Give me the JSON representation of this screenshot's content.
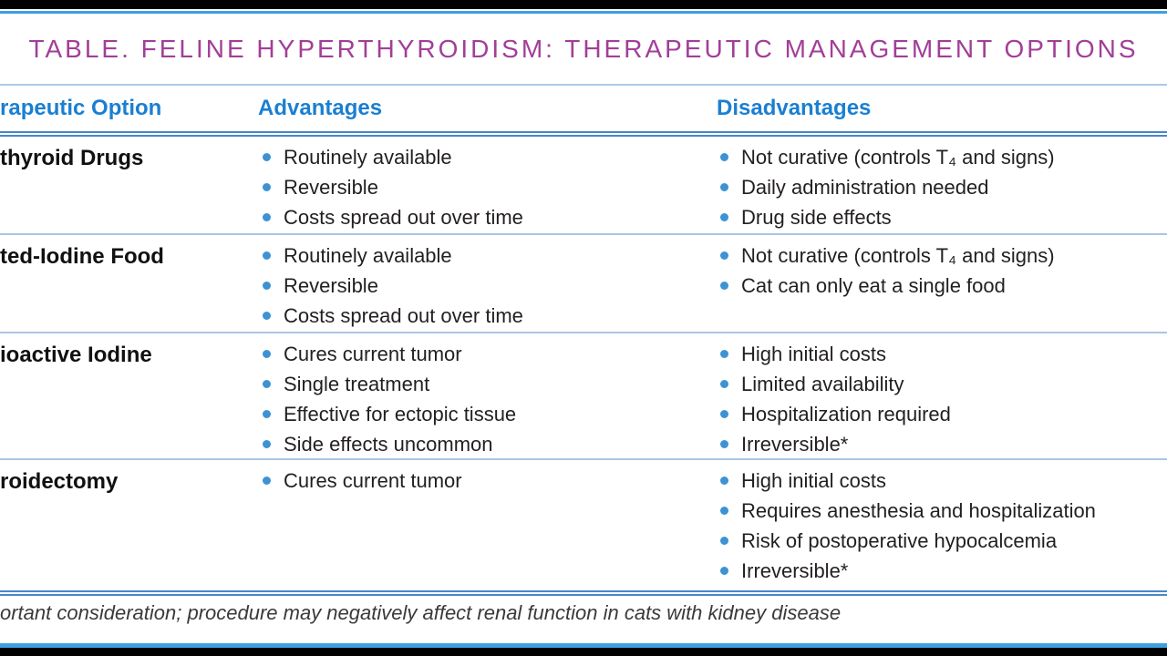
{
  "page": {
    "title": "TABLE. FELINE HYPERTHYROIDISM: THERAPEUTIC MANAGEMENT OPTIONS"
  },
  "table": {
    "headers": {
      "option": "rapeutic Option",
      "advantages": "Advantages",
      "disadvantages": "Disadvantages"
    },
    "rows": [
      {
        "option": "thyroid Drugs",
        "advantages": [
          "Routinely available",
          "Reversible",
          "Costs spread out over time"
        ],
        "disadvantages": [
          "Not curative (controls T₄ and signs)",
          "Daily administration needed",
          "Drug side effects"
        ]
      },
      {
        "option": "ted-Iodine Food",
        "advantages": [
          "Routinely available",
          "Reversible",
          "Costs spread out over time"
        ],
        "disadvantages": [
          "Not curative (controls T₄ and signs)",
          "Cat can only eat a single food"
        ]
      },
      {
        "option": "ioactive Iodine",
        "advantages": [
          "Cures current tumor",
          "Single treatment",
          "Effective for ectopic tissue",
          "Side effects uncommon"
        ],
        "disadvantages": [
          "High initial costs",
          "Limited availability",
          "Hospitalization required",
          "Irreversible*"
        ]
      },
      {
        "option": "roidectomy",
        "advantages": [
          "Cures current tumor"
        ],
        "disadvantages": [
          "High initial costs",
          "Requires anesthesia and hospitalization",
          "Risk of postoperative hypocalcemia",
          "Irreversible*"
        ]
      }
    ],
    "footnote": "ortant consideration; procedure may negatively affect renal function in cats with kidney disease"
  },
  "colors": {
    "title_magenta": "#a23e98",
    "header_blue": "#1a7fd2",
    "bullet_blue": "#3d92d4",
    "accent_bar_blue": "#3da0e0",
    "double_rule_blue": "#4886cc",
    "row_separator_blue": "#a8c6e5",
    "body_text": "#231f20"
  }
}
